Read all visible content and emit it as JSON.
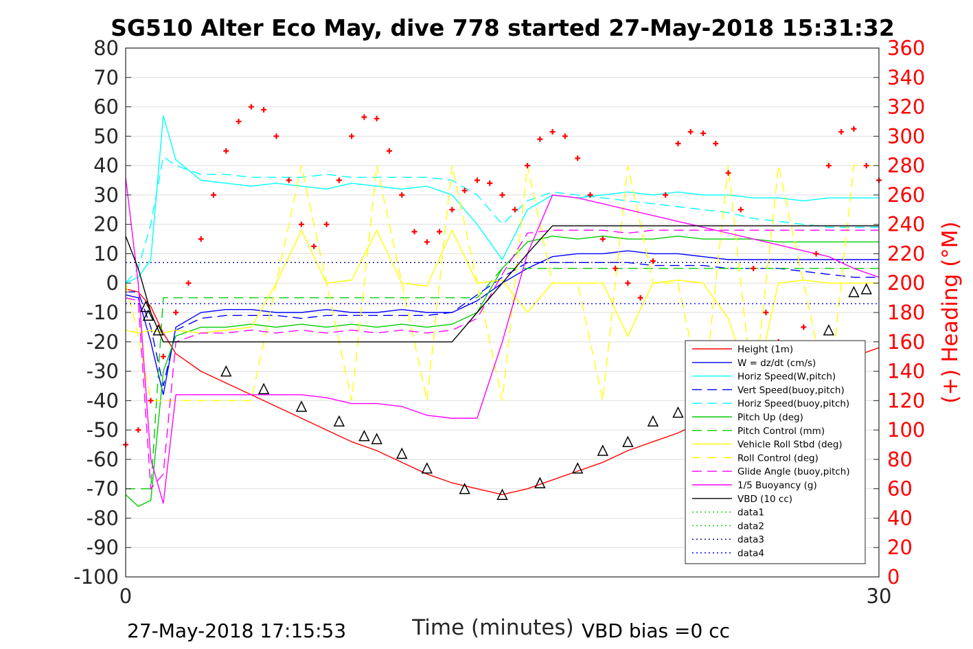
{
  "chart_data": {
    "type": "line",
    "title": "SG510 Alter Eco May, dive 778 started 27-May-2018 15:31:32",
    "xlabel": "Time (minutes)",
    "ylabel": "",
    "y2label": "(+) Heading (°M)",
    "xlim": [
      0,
      30
    ],
    "ylim": [
      -100,
      80
    ],
    "y2lim": [
      0,
      360
    ],
    "x_ticks": [
      "0",
      "30"
    ],
    "y_ticks": [
      "80",
      "70",
      "60",
      "50",
      "40",
      "30",
      "20",
      "10",
      "0",
      "-10",
      "-20",
      "-30",
      "-40",
      "-50",
      "-60",
      "-70",
      "-80",
      "-90",
      "-100"
    ],
    "y2_ticks": [
      "360",
      "340",
      "320",
      "300",
      "280",
      "260",
      "240",
      "220",
      "200",
      "180",
      "160",
      "140",
      "120",
      "100",
      "80",
      "60",
      "40",
      "20",
      "0"
    ],
    "grid": true,
    "legend_position": "lower-right",
    "footer_left": "27-May-2018 17:15:53",
    "footer_right": "VBD bias =0 cc",
    "legend": [
      {
        "label": "Height (1m)",
        "color": "#ff0000",
        "dash": "solid"
      },
      {
        "label": "W = dz/dt (cm/s)",
        "color": "#0000ff",
        "dash": "solid"
      },
      {
        "label": "Horiz Speed(W,pitch)",
        "color": "#00ffff",
        "dash": "solid"
      },
      {
        "label": "Vert Speed(buoy,pitch)",
        "color": "#0000ff",
        "dash": "dashed"
      },
      {
        "label": "Horiz Speed(buoy,pitch)",
        "color": "#00ffff",
        "dash": "dashed"
      },
      {
        "label": "Pitch Up (deg)",
        "color": "#00cc00",
        "dash": "solid"
      },
      {
        "label": "Pitch Control (mm)",
        "color": "#00cc00",
        "dash": "dashed"
      },
      {
        "label": "Vehicle Roll Stbd (deg)",
        "color": "#ffff00",
        "dash": "solid"
      },
      {
        "label": "Roll Control (deg)",
        "color": "#ffff00",
        "dash": "dashed"
      },
      {
        "label": "Glide Angle (buoy,pitch)",
        "color": "#ff00ff",
        "dash": "dashed"
      },
      {
        "label": "1/5 Buoyancy (g)",
        "color": "#ff00ff",
        "dash": "solid"
      },
      {
        "label": "VBD (10 cc)",
        "color": "#000000",
        "dash": "solid"
      },
      {
        "label": "data1",
        "color": "#00cc00",
        "dash": "dotted"
      },
      {
        "label": "data2",
        "color": "#00cc00",
        "dash": "dotted"
      },
      {
        "label": "data3",
        "color": "#00008b",
        "dash": "dotted"
      },
      {
        "label": "data4",
        "color": "#0000ff",
        "dash": "dotted"
      }
    ],
    "series": [
      {
        "name": "Height (1m)",
        "color": "#ff0000",
        "dash": "solid",
        "x": [
          0,
          0.5,
          1,
          1.5,
          2,
          3,
          4,
          5,
          6,
          7,
          8,
          9,
          10,
          11,
          12,
          13,
          14,
          15,
          16,
          17,
          18,
          19,
          20,
          21,
          22,
          23,
          24,
          25,
          26,
          27,
          28,
          29,
          30
        ],
        "y": [
          -2,
          -3,
          -8,
          -17,
          -24,
          -30,
          -34,
          -38,
          -42,
          -46,
          -50,
          -54,
          -57,
          -61,
          -65,
          -68,
          -70,
          -72,
          -70,
          -67,
          -64,
          -61,
          -57,
          -54,
          -51,
          -47,
          -44,
          -40,
          -37,
          -33,
          -29,
          -25,
          -22
        ]
      },
      {
        "name": "W = dz/dt (cm/s)",
        "color": "#0000ff",
        "dash": "solid",
        "x": [
          0,
          0.5,
          1,
          1.5,
          2,
          3,
          4,
          5,
          6,
          7,
          8,
          9,
          10,
          11,
          12,
          13,
          14,
          15,
          16,
          17,
          18,
          19,
          20,
          21,
          22,
          23,
          24,
          25,
          26,
          27,
          28,
          29,
          30
        ],
        "y": [
          -4,
          -5,
          -20,
          -38,
          -15,
          -10,
          -9,
          -9,
          -10,
          -10,
          -9,
          -10,
          -10,
          -9,
          -10,
          -10,
          -6,
          0,
          5,
          9,
          10,
          10,
          11,
          10,
          10,
          9,
          8,
          8,
          8,
          8,
          8,
          8,
          8
        ]
      },
      {
        "name": "Horiz Speed(W,pitch)",
        "color": "#00ffff",
        "dash": "solid",
        "x": [
          0,
          0.5,
          1,
          1.5,
          2,
          3,
          4,
          5,
          6,
          7,
          8,
          9,
          10,
          11,
          12,
          13,
          14,
          15,
          16,
          17,
          18,
          19,
          20,
          21,
          22,
          23,
          24,
          25,
          26,
          27,
          28,
          29,
          30
        ],
        "y": [
          0,
          2,
          8,
          57,
          42,
          35,
          34,
          33,
          34,
          33,
          32,
          34,
          33,
          32,
          33,
          30,
          20,
          8,
          25,
          30,
          29,
          30,
          31,
          30,
          31,
          30,
          30,
          29,
          29,
          28,
          29,
          29,
          29
        ]
      },
      {
        "name": "Vert Speed(buoy,pitch)",
        "color": "#0000ff",
        "dash": "dashed",
        "x": [
          0,
          0.5,
          1,
          1.5,
          2,
          3,
          4,
          5,
          6,
          7,
          8,
          9,
          10,
          11,
          12,
          13,
          14,
          15,
          16,
          17,
          18,
          19,
          20,
          21,
          22,
          23,
          24,
          25,
          26,
          27,
          28,
          29,
          30
        ],
        "y": [
          -3,
          -3,
          -15,
          -35,
          -16,
          -12,
          -11,
          -11,
          -11,
          -12,
          -11,
          -11,
          -11,
          -11,
          -11,
          -10,
          -4,
          2,
          7,
          7,
          7,
          7,
          7,
          6,
          6,
          6,
          5,
          5,
          5,
          4,
          3,
          2,
          2
        ]
      },
      {
        "name": "Horiz Speed(buoy,pitch)",
        "color": "#00ffff",
        "dash": "dashed",
        "x": [
          0,
          0.5,
          1,
          1.5,
          2,
          3,
          4,
          5,
          6,
          7,
          8,
          9,
          10,
          11,
          12,
          13,
          14,
          15,
          16,
          17,
          18,
          19,
          20,
          21,
          22,
          23,
          24,
          25,
          26,
          27,
          28,
          29,
          30
        ],
        "y": [
          0,
          5,
          20,
          43,
          40,
          37,
          37,
          36,
          36,
          36,
          37,
          36,
          36,
          36,
          36,
          35,
          30,
          20,
          28,
          31,
          30,
          29,
          28,
          27,
          26,
          25,
          24,
          22,
          21,
          20,
          19,
          19,
          19
        ]
      },
      {
        "name": "Pitch Up (deg)",
        "color": "#00cc00",
        "dash": "solid",
        "x": [
          0,
          0.5,
          1,
          1.5,
          2,
          3,
          4,
          5,
          6,
          7,
          8,
          9,
          10,
          11,
          12,
          13,
          14,
          15,
          16,
          17,
          18,
          19,
          20,
          21,
          22,
          23,
          24,
          25,
          26,
          27,
          28,
          29,
          30
        ],
        "y": [
          -72,
          -76,
          -74,
          -30,
          -18,
          -15,
          -15,
          -14,
          -15,
          -14,
          -15,
          -14,
          -15,
          -14,
          -15,
          -14,
          -10,
          5,
          14,
          16,
          15,
          16,
          15,
          15,
          16,
          15,
          15,
          15,
          14,
          14,
          14,
          14,
          14
        ]
      },
      {
        "name": "Pitch Control (mm)",
        "color": "#00cc00",
        "dash": "dashed",
        "x": [
          0,
          0.5,
          1,
          1.5,
          2,
          3,
          4,
          5,
          6,
          7,
          8,
          9,
          10,
          11,
          12,
          13,
          14,
          15,
          16,
          17,
          18,
          19,
          20,
          21,
          22,
          23,
          24,
          25,
          26,
          27,
          28,
          29,
          30
        ],
        "y": [
          -70,
          -70,
          -70,
          -5,
          -5,
          -5,
          -5,
          -5,
          -5,
          -5,
          -5,
          -5,
          -5,
          -5,
          -5,
          -5,
          -5,
          5,
          5,
          5,
          5,
          5,
          5,
          5,
          5,
          5,
          5,
          5,
          5,
          5,
          5,
          5,
          5
        ]
      },
      {
        "name": "Vehicle Roll Stbd (deg)",
        "color": "#ffff00",
        "dash": "solid",
        "x": [
          0,
          0.5,
          1,
          1.5,
          2,
          3,
          4,
          5,
          6,
          7,
          8,
          9,
          10,
          11,
          12,
          13,
          14,
          15,
          16,
          17,
          18,
          19,
          20,
          21,
          22,
          23,
          24,
          25,
          26,
          27,
          28,
          29,
          30
        ],
        "y": [
          -16,
          -17,
          -16,
          -17,
          -16,
          -17,
          -16,
          -15,
          0,
          18,
          0,
          1,
          18,
          0,
          -1,
          18,
          0,
          1,
          -10,
          0,
          0,
          0,
          -18,
          0,
          1,
          0,
          -12,
          -38,
          0,
          1,
          0,
          0,
          0
        ]
      },
      {
        "name": "Roll Control (deg)",
        "color": "#ffff00",
        "dash": "dashed",
        "x": [
          0,
          0.5,
          1,
          1.5,
          2,
          3,
          4,
          5,
          6,
          7,
          8,
          9,
          10,
          11,
          12,
          13,
          14,
          15,
          16,
          17,
          18,
          19,
          20,
          21,
          22,
          23,
          24,
          25,
          26,
          27,
          28,
          29,
          30
        ],
        "y": [
          0,
          -18,
          -40,
          -40,
          -40,
          -40,
          -40,
          -40,
          0,
          40,
          0,
          -40,
          40,
          0,
          -40,
          40,
          0,
          -40,
          40,
          0,
          0,
          -40,
          40,
          0,
          0,
          -40,
          40,
          -40,
          40,
          0,
          -40,
          40,
          40
        ]
      },
      {
        "name": "Glide Angle (buoy,pitch)",
        "color": "#ff00ff",
        "dash": "dashed",
        "x": [
          0,
          0.5,
          1,
          1.5,
          2,
          3,
          4,
          5,
          6,
          7,
          8,
          9,
          10,
          11,
          12,
          13,
          14,
          15,
          16,
          17,
          18,
          19,
          20,
          21,
          22,
          23,
          24,
          25,
          26,
          27,
          28,
          29,
          30
        ],
        "y": [
          -5,
          -6,
          -70,
          -65,
          -20,
          -17,
          -17,
          -16,
          -17,
          -16,
          -17,
          -16,
          -17,
          -16,
          -17,
          -16,
          -12,
          3,
          17,
          18,
          18,
          18,
          17,
          18,
          18,
          18,
          18,
          18,
          18,
          18,
          18,
          18,
          18
        ]
      },
      {
        "name": "1/5 Buoyancy (g)",
        "color": "#ff00ff",
        "dash": "solid",
        "x": [
          0,
          0.5,
          1,
          1.5,
          2,
          3,
          4,
          5,
          6,
          7,
          8,
          9,
          10,
          11,
          12,
          13,
          14,
          15,
          16,
          17,
          18,
          19,
          20,
          21,
          22,
          23,
          24,
          25,
          26,
          27,
          28,
          29,
          30
        ],
        "y": [
          36,
          0,
          -60,
          -75,
          -38,
          -38,
          -38,
          -38,
          -38,
          -38,
          -39,
          -41,
          -41,
          -42,
          -45,
          -46,
          -46,
          -20,
          10,
          30,
          29,
          27,
          25,
          23,
          21,
          19,
          17,
          15,
          13,
          11,
          9,
          5,
          2
        ]
      },
      {
        "name": "VBD (10 cc)",
        "color": "#000000",
        "dash": "solid",
        "x": [
          0,
          0.5,
          1,
          1.5,
          2,
          3,
          4,
          5,
          6,
          7,
          8,
          9,
          10,
          11,
          12,
          13,
          14,
          15,
          16,
          17,
          18,
          19,
          20,
          21,
          22,
          23,
          24,
          25,
          26,
          27,
          28,
          29,
          30
        ],
        "y": [
          16,
          5,
          -10,
          -20,
          -20,
          -20,
          -20,
          -20,
          -20,
          -20,
          -20,
          -20,
          -20,
          -20,
          -20,
          -20,
          -10,
          0,
          10,
          19.5,
          19.5,
          19.5,
          19.5,
          19.5,
          19.5,
          19.5,
          19.5,
          19.5,
          19.5,
          19.5,
          19.5,
          19.5,
          19.5
        ]
      },
      {
        "name": "data3",
        "color": "#00008b",
        "dash": "dotted",
        "x": [
          0,
          30
        ],
        "y": [
          7,
          7
        ]
      },
      {
        "name": "data4",
        "color": "#0000ff",
        "dash": "dotted",
        "x": [
          0,
          30
        ],
        "y": [
          -7,
          -7
        ]
      }
    ],
    "heading_points": {
      "name": "Heading",
      "color": "#ff0000",
      "x": [
        0,
        0.5,
        1,
        1.5,
        2,
        2.5,
        3,
        3.5,
        4,
        4.5,
        5,
        5.5,
        6,
        6.5,
        7,
        7.5,
        8,
        8.5,
        9,
        9.5,
        10,
        10.5,
        11,
        11.5,
        12,
        12.5,
        13,
        13.5,
        14,
        14.5,
        15,
        15.5,
        16,
        16.5,
        17,
        17.5,
        18,
        18.5,
        19,
        19.5,
        20,
        20.5,
        21,
        21.5,
        22,
        22.5,
        23,
        23.5,
        24,
        24.5,
        25,
        25.5,
        26,
        26.5,
        27,
        27.5,
        28,
        28.5,
        29,
        29.5,
        30
      ],
      "y": [
        90,
        100,
        120,
        150,
        180,
        200,
        230,
        260,
        290,
        310,
        320,
        318,
        300,
        270,
        240,
        225,
        240,
        270,
        300,
        313,
        312,
        290,
        260,
        235,
        228,
        235,
        250,
        263,
        270,
        268,
        260,
        250,
        280,
        298,
        303,
        300,
        285,
        260,
        230,
        210,
        200,
        190,
        215,
        260,
        295,
        303,
        302,
        295,
        275,
        250,
        210,
        180,
        160,
        150,
        170,
        220,
        280,
        303,
        305,
        280,
        270
      ]
    },
    "triangle_markers": {
      "x": [
        0.8,
        0.9,
        1.3,
        4,
        5.5,
        7,
        8.5,
        9.5,
        10,
        11,
        12,
        13.5,
        15,
        16.5,
        18,
        19,
        20,
        21,
        22,
        23,
        24,
        25,
        26,
        27,
        28,
        29,
        29.5
      ],
      "y": [
        -8,
        -11,
        -16,
        -30,
        -36,
        -42,
        -47,
        -52,
        -53,
        -58,
        -63,
        -70,
        -72,
        -68,
        -63,
        -57,
        -54,
        -47,
        -44,
        -39,
        -32,
        -30,
        -24,
        -22,
        -16,
        -3,
        -2
      ]
    }
  }
}
